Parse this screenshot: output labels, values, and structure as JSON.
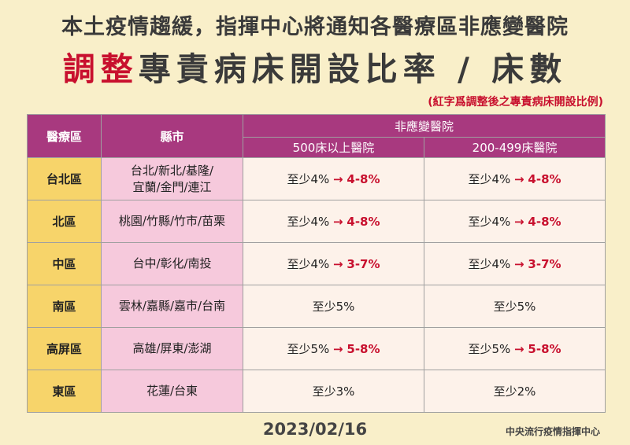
{
  "header": {
    "title_line1": "本土疫情趨緩，指揮中心將通知各醫療區非應變醫院",
    "title_line2_red": "調整",
    "title_line2_rest": "專責病床開設比率 / 床數",
    "note": "(紅字爲調整後之專責病床開設比例)"
  },
  "table": {
    "col_region": "醫療區",
    "col_city": "縣市",
    "col_group": "非應變醫院",
    "col_500": "500床以上醫院",
    "col_200": "200-499床醫院",
    "rows": [
      {
        "region": "台北區",
        "city1": "台北/新北/基隆/",
        "city2": "宜蘭/金門/連江",
        "v500_base": "至少4%",
        "v500_arrow": "→",
        "v500_new": "4-8%",
        "v200_base": "至少4%",
        "v200_arrow": "→",
        "v200_new": "4-8%"
      },
      {
        "region": "北區",
        "city1": "桃園/竹縣/竹市/苗栗",
        "city2": "",
        "v500_base": "至少4%",
        "v500_arrow": "→",
        "v500_new": "4-8%",
        "v200_base": "至少4%",
        "v200_arrow": "→",
        "v200_new": "4-8%"
      },
      {
        "region": "中區",
        "city1": "台中/彰化/南投",
        "city2": "",
        "v500_base": "至少4%",
        "v500_arrow": "→",
        "v500_new": "3-7%",
        "v200_base": "至少4%",
        "v200_arrow": "→",
        "v200_new": "3-7%"
      },
      {
        "region": "南區",
        "city1": "雲林/嘉縣/嘉市/台南",
        "city2": "",
        "v500_base": "至少5%",
        "v500_arrow": "",
        "v500_new": "",
        "v200_base": "至少5%",
        "v200_arrow": "",
        "v200_new": ""
      },
      {
        "region": "高屏區",
        "city1": "高雄/屏東/澎湖",
        "city2": "",
        "v500_base": "至少5%",
        "v500_arrow": "→",
        "v500_new": "5-8%",
        "v200_base": "至少5%",
        "v200_arrow": "→",
        "v200_new": "5-8%"
      },
      {
        "region": "東區",
        "city1": "花蓮/台東",
        "city2": "",
        "v500_base": "至少3%",
        "v500_arrow": "",
        "v500_new": "",
        "v200_base": "至少2%",
        "v200_arrow": "",
        "v200_new": ""
      }
    ]
  },
  "footer": {
    "date": "2023/02/16",
    "org": "中央流行疫情指揮中心"
  },
  "colors": {
    "background": "#f9efc9",
    "header_purple": "#a8397f",
    "region_yellow": "#f7d46a",
    "city_pink": "#f6c9dc",
    "value_cream": "#fdf2ea",
    "accent_red": "#c8102e"
  }
}
